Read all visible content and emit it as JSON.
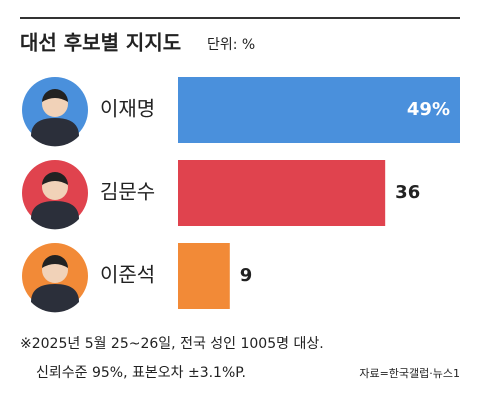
{
  "chart_data": {
    "type": "bar",
    "orientation": "horizontal",
    "title": "대선 후보별 지지도",
    "subtitle": "단위: %",
    "categories": [
      "이재명",
      "김문수",
      "이준석"
    ],
    "values": [
      49,
      36,
      9
    ],
    "value_labels": [
      "49%",
      "36",
      "9"
    ],
    "colors": [
      "#4a90dc",
      "#e0434e",
      "#f28a37"
    ],
    "photo_colors": [
      "#4a90dc",
      "#e0434e",
      "#f28a37"
    ],
    "xlim": [
      0,
      49
    ],
    "notes": [
      "※2025년 5월 25~26일, 전국 성인 1005명 대상.",
      "신뢰수준 95%, 표본오차 ±3.1%P."
    ],
    "source": "자료=한국갤럽·뉴스1"
  }
}
